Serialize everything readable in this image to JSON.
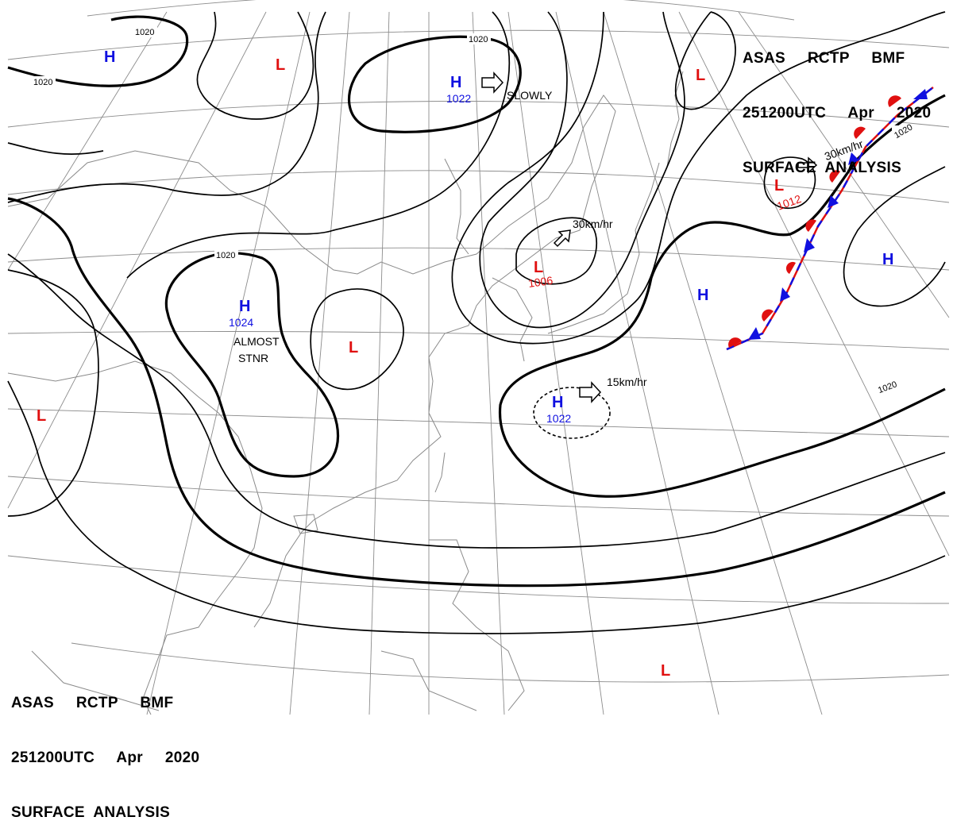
{
  "header": {
    "line1": "ASAS     RCTP     BMF",
    "line2": "251200UTC     Apr     2020",
    "line3": "SURFACE  ANALYSIS"
  },
  "colors": {
    "high": "#1010e0",
    "low": "#e01010",
    "isobar": "#000000",
    "grid": "#8c8c8c"
  },
  "isobar_labels": [
    "1020",
    "1020",
    "1020",
    "1020",
    "1020",
    "1020"
  ],
  "pressure_centers": [
    {
      "type": "H",
      "value": ""
    },
    {
      "type": "L",
      "value": ""
    },
    {
      "type": "H",
      "value": "1022"
    },
    {
      "type": "L",
      "value": ""
    },
    {
      "type": "L",
      "value": "1012"
    },
    {
      "type": "L",
      "value": "1006"
    },
    {
      "type": "H",
      "value": "1024"
    },
    {
      "type": "L",
      "value": ""
    },
    {
      "type": "H",
      "value": ""
    },
    {
      "type": "H",
      "value": ""
    },
    {
      "type": "H",
      "value": "1022"
    },
    {
      "type": "L",
      "value": ""
    },
    {
      "type": "L",
      "value": ""
    }
  ],
  "motion_notes": [
    "SLOWLY",
    "30km/hr",
    "30km/hr",
    "15km/hr",
    "ALMOST",
    "STNR"
  ]
}
